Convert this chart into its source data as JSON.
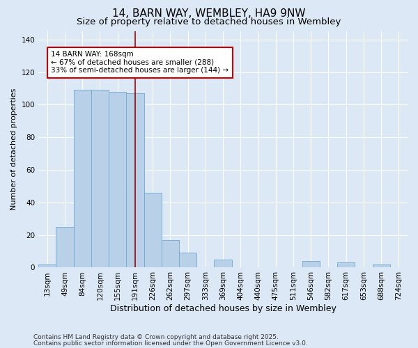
{
  "title": "14, BARN WAY, WEMBLEY, HA9 9NW",
  "subtitle": "Size of property relative to detached houses in Wembley",
  "xlabel": "Distribution of detached houses by size in Wembley",
  "ylabel": "Number of detached properties",
  "footnote1": "Contains HM Land Registry data © Crown copyright and database right 2025.",
  "footnote2": "Contains public sector information licensed under the Open Government Licence v3.0.",
  "categories": [
    "13sqm",
    "49sqm",
    "84sqm",
    "120sqm",
    "155sqm",
    "191sqm",
    "226sqm",
    "262sqm",
    "297sqm",
    "333sqm",
    "369sqm",
    "404sqm",
    "440sqm",
    "475sqm",
    "511sqm",
    "546sqm",
    "582sqm",
    "617sqm",
    "653sqm",
    "688sqm",
    "724sqm"
  ],
  "values": [
    2,
    25,
    109,
    109,
    108,
    107,
    46,
    17,
    9,
    0,
    5,
    0,
    0,
    0,
    0,
    4,
    0,
    3,
    0,
    2,
    0
  ],
  "bar_color": "#b8d0e8",
  "bar_edge_color": "#6fa8d0",
  "background_color": "#dce8f5",
  "plot_bg_color": "#dce8f5",
  "grid_color": "#ffffff",
  "vline_x": 5.0,
  "vline_color": "#990000",
  "annotation_text": "14 BARN WAY: 168sqm\n← 67% of detached houses are smaller (288)\n33% of semi-detached houses are larger (144) →",
  "annotation_box_facecolor": "#ffffff",
  "annotation_box_edgecolor": "#cc0000",
  "ylim": [
    0,
    145
  ],
  "yticks": [
    0,
    20,
    40,
    60,
    80,
    100,
    120,
    140
  ],
  "title_fontsize": 11,
  "subtitle_fontsize": 9.5,
  "xlabel_fontsize": 9,
  "ylabel_fontsize": 8,
  "tick_fontsize": 7.5,
  "annotation_fontsize": 7.5,
  "footnote_fontsize": 6.5
}
